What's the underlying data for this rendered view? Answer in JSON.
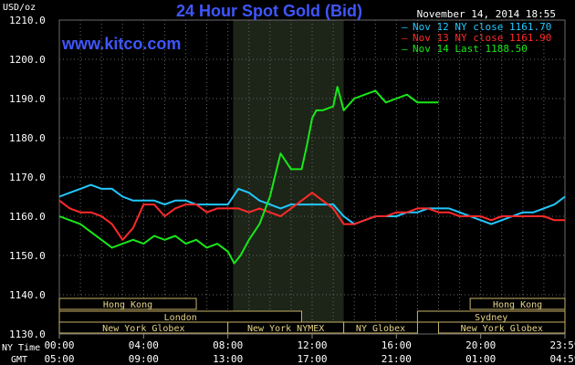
{
  "header": {
    "unit": "USD/oz",
    "title": "24 Hour Spot Gold (Bid)",
    "datetime": "November 14, 2014 18:55",
    "watermark": "www.kitco.com"
  },
  "legend": [
    {
      "label": "Nov 12 NY close 1161.70",
      "color": "#22c8ff"
    },
    {
      "label": "Nov 13 NY close 1161.90",
      "color": "#ff2a2a"
    },
    {
      "label": "Nov 14 Last 1188.50",
      "color": "#18e818"
    }
  ],
  "axis_labels": {
    "ny_time": "NY Time",
    "gmt": "GMT"
  },
  "sessions": [
    {
      "label": "Hong Kong",
      "start": 0,
      "end": 6.5,
      "row": 0
    },
    {
      "label": "London",
      "start": 0,
      "end": 11.5,
      "row": 1
    },
    {
      "label": "New York Globex",
      "start": 0,
      "end": 8,
      "row": 2
    },
    {
      "label": "New York NYMEX",
      "start": 8,
      "end": 13.5,
      "row": 2
    },
    {
      "label": "NY Globex",
      "start": 13.5,
      "end": 17,
      "row": 2
    },
    {
      "label": "Hong Kong",
      "start": 19.5,
      "end": 24,
      "row": 0
    },
    {
      "label": "Sydney",
      "start": 17,
      "end": 24,
      "row": 1
    },
    {
      "label": "New York Globex",
      "start": 18,
      "end": 24,
      "row": 2
    }
  ],
  "chart_data": {
    "type": "line",
    "title": "24 Hour Spot Gold (Bid)",
    "ylabel": "USD/oz",
    "ylim": [
      1130,
      1210
    ],
    "yticks": [
      "1130.0",
      "1140.0",
      "1150.0",
      "1160.0",
      "1170.0",
      "1180.0",
      "1190.0",
      "1200.0",
      "1210.0"
    ],
    "xlim": [
      0,
      24
    ],
    "xticks_ny": [
      "00:00",
      "04:00",
      "08:00",
      "12:00",
      "16:00",
      "20:00",
      "23:59"
    ],
    "xticks_gmt": [
      "05:00",
      "09:00",
      "13:00",
      "17:00",
      "21:00",
      "01:00",
      "04:59"
    ],
    "xtick_positions": [
      0,
      4,
      8,
      12,
      16,
      20,
      24
    ],
    "highlight_band": [
      8.25,
      13.5
    ],
    "grid": true,
    "series": [
      {
        "name": "Nov 12 NY close 1161.70",
        "color": "#22c8ff",
        "x": [
          0,
          0.5,
          1,
          1.5,
          2,
          2.5,
          3,
          3.5,
          4,
          4.5,
          5,
          5.5,
          6,
          6.5,
          7,
          7.5,
          8,
          8.5,
          9,
          9.5,
          10,
          10.5,
          11,
          11.5,
          12,
          12.5,
          13,
          13.5,
          14,
          14.5,
          15,
          15.5,
          16,
          16.5,
          17,
          17.5,
          18,
          18.5,
          19,
          19.5,
          20,
          20.5,
          21,
          21.5,
          22,
          22.5,
          23,
          23.5,
          24
        ],
        "y": [
          1165,
          1166,
          1167,
          1168,
          1167,
          1167,
          1165,
          1164,
          1164,
          1164,
          1163,
          1164,
          1164,
          1163,
          1163,
          1163,
          1163,
          1167,
          1166,
          1164,
          1163,
          1162,
          1163,
          1163,
          1163,
          1163,
          1163,
          1160,
          1158,
          1159,
          1160,
          1160,
          1160,
          1161,
          1161,
          1162,
          1162,
          1162,
          1161,
          1160,
          1159,
          1158,
          1159,
          1160,
          1161,
          1161,
          1162,
          1163,
          1165
        ]
      },
      {
        "name": "Nov 13 NY close 1161.90",
        "color": "#ff2a2a",
        "x": [
          0,
          0.5,
          1,
          1.5,
          2,
          2.5,
          3,
          3.5,
          4,
          4.5,
          5,
          5.5,
          6,
          6.5,
          7,
          7.5,
          8,
          8.5,
          9,
          9.5,
          10,
          10.5,
          11,
          11.5,
          12,
          12.5,
          13,
          13.5,
          14,
          14.5,
          15,
          15.5,
          16,
          16.5,
          17,
          17.5,
          18,
          18.5,
          19,
          19.5,
          20,
          20.5,
          21,
          21.5,
          22,
          22.5,
          23,
          23.5,
          24
        ],
        "y": [
          1164,
          1162,
          1161,
          1161,
          1160,
          1158,
          1154,
          1157,
          1163,
          1163,
          1160,
          1162,
          1163,
          1163,
          1161,
          1162,
          1162,
          1162,
          1161,
          1162,
          1161,
          1160,
          1162,
          1164,
          1166,
          1164,
          1162,
          1158,
          1158,
          1159,
          1160,
          1160,
          1161,
          1161,
          1162,
          1162,
          1161,
          1161,
          1160,
          1160,
          1160,
          1159,
          1160,
          1160,
          1160,
          1160,
          1160,
          1159,
          1159
        ]
      },
      {
        "name": "Nov 14 Last 1188.50",
        "color": "#18e818",
        "x": [
          0,
          0.5,
          1,
          1.5,
          2,
          2.5,
          3,
          3.5,
          4,
          4.5,
          5,
          5.5,
          6,
          6.5,
          7,
          7.5,
          8,
          8.3,
          8.6,
          9,
          9.5,
          10,
          10.5,
          11,
          11.5,
          11.75,
          12,
          12.2,
          12.5,
          13,
          13.2,
          13.5,
          14,
          14.5,
          15,
          15.5,
          16,
          16.5,
          17,
          17.5,
          18
        ],
        "y": [
          1160,
          1159,
          1158,
          1156,
          1154,
          1152,
          1153,
          1154,
          1153,
          1155,
          1154,
          1155,
          1153,
          1154,
          1152,
          1153,
          1151,
          1148,
          1150,
          1154,
          1158,
          1165,
          1176,
          1172,
          1172,
          1178,
          1185,
          1187,
          1187,
          1188,
          1193,
          1187,
          1190,
          1191,
          1192,
          1189,
          1190,
          1191,
          1189,
          1189,
          1189
        ]
      }
    ]
  }
}
